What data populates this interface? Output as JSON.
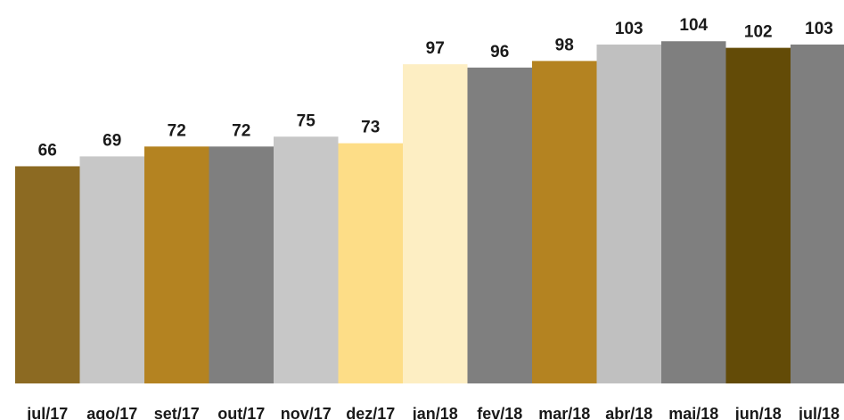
{
  "chart_data": {
    "type": "bar",
    "title": "",
    "xlabel": "",
    "ylabel": "",
    "categories": [
      "jul/17",
      "ago/17",
      "set/17",
      "out/17",
      "nov/17",
      "dez/17",
      "jan/18",
      "fev/18",
      "mar/18",
      "abr/18",
      "mai/18",
      "jun/18",
      "jul/18"
    ],
    "values": [
      66,
      69,
      72,
      72,
      75,
      73,
      97,
      96,
      98,
      103,
      104,
      102,
      103
    ],
    "data_labels": [
      "66",
      "69",
      "72",
      "72",
      "75",
      "73",
      "97",
      "96",
      "98",
      "103",
      "104",
      "102",
      "103"
    ],
    "colors": [
      "#8c6a22",
      "#c7c7c7",
      "#b48321",
      "#7f7f7f",
      "#c7c7c7",
      "#fddd87",
      "#fdeec3",
      "#7f7f7f",
      "#b48321",
      "#c0c0c0",
      "#7f7f7f",
      "#634b07",
      "#7f7f7f"
    ],
    "ylim": [
      0,
      120
    ],
    "grid": false,
    "legend": "none"
  }
}
